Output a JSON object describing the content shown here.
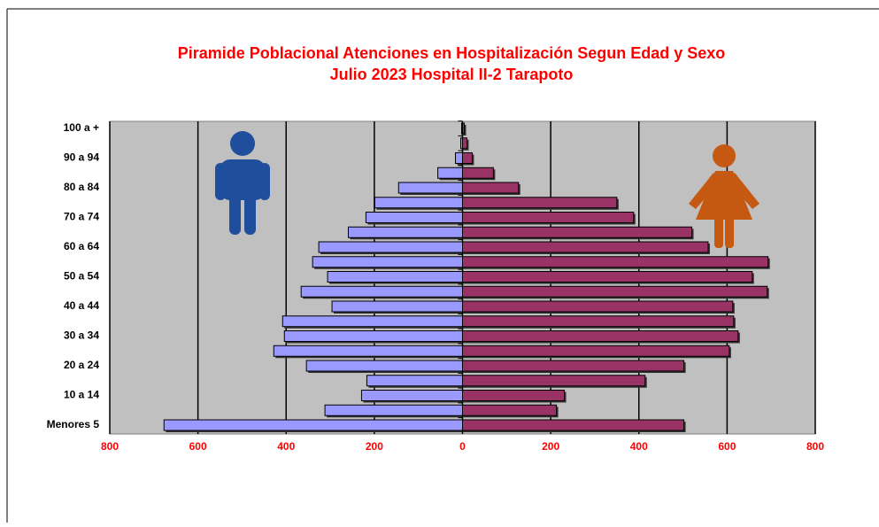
{
  "chart_data": {
    "type": "pyramid",
    "title": [
      "Piramide Poblacional  Atenciones en Hospitalización Segun Edad y Sexo",
      "Julio 2023  Hospital II-2 Tarapoto"
    ],
    "categories": [
      "Menores 5",
      null,
      "10 a 14",
      null,
      "20 a 24",
      null,
      "30 a 34",
      null,
      "40 a 44",
      null,
      "50 a 54",
      null,
      "60 a 64",
      null,
      "70 a 74",
      null,
      "80 a 84",
      null,
      "90 a 94",
      null,
      "100 a +"
    ],
    "series": [
      {
        "color": "#9999ff",
        "values": [
          -677,
          -312,
          -229,
          -217,
          -354,
          -428,
          -404,
          -408,
          -296,
          -366,
          -306,
          -340,
          -326,
          -259,
          -219,
          -199,
          -145,
          -56,
          -16,
          -4,
          -2
        ]
      },
      {
        "color": "#993366",
        "values": [
          502,
          213,
          231,
          414,
          502,
          605,
          625,
          615,
          613,
          691,
          657,
          693,
          557,
          520,
          388,
          350,
          127,
          70,
          22,
          10,
          4
        ]
      }
    ],
    "xlim": [
      -800,
      800
    ],
    "xticks": [
      {
        "value": -800,
        "label": "800"
      },
      {
        "value": -600,
        "label": "600"
      },
      {
        "value": -400,
        "label": "400"
      },
      {
        "value": -200,
        "label": "200"
      },
      0,
      200,
      400,
      600,
      800
    ],
    "grid": true
  }
}
